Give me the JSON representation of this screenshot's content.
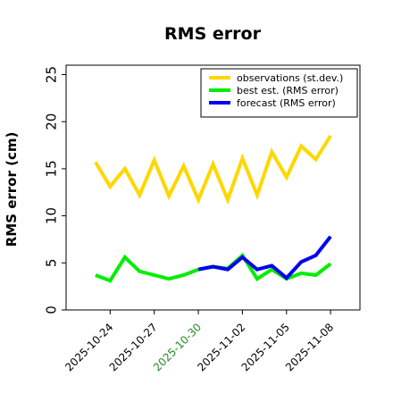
{
  "chart_data": {
    "type": "line",
    "title": "RMS error",
    "ylabel": "RMS error (cm)",
    "xlabel": "",
    "ylim": [
      0,
      26
    ],
    "xlim": [
      "2025-10-21",
      "2025-11-10"
    ],
    "yticks": [
      0,
      5,
      10,
      15,
      20,
      25
    ],
    "xticks": [
      {
        "label": "2025-10-24",
        "date": "2025-10-24",
        "color": "#000000"
      },
      {
        "label": "2025-10-27",
        "date": "2025-10-27",
        "color": "#000000"
      },
      {
        "label": "2025-10-30",
        "date": "2025-10-30",
        "color": "#228B22"
      },
      {
        "label": "2025-11-02",
        "date": "2025-11-02",
        "color": "#000000"
      },
      {
        "label": "2025-11-05",
        "date": "2025-11-05",
        "color": "#000000"
      },
      {
        "label": "2025-11-08",
        "date": "2025-11-08",
        "color": "#000000"
      }
    ],
    "grid": false,
    "legend_position": "top-right",
    "series": [
      {
        "name": "observations (st.dev.)",
        "color": "#FFD700",
        "x": [
          "2025-10-23",
          "2025-10-24",
          "2025-10-25",
          "2025-10-26",
          "2025-10-27",
          "2025-10-28",
          "2025-10-29",
          "2025-10-30",
          "2025-10-31",
          "2025-11-01",
          "2025-11-02",
          "2025-11-03",
          "2025-11-04",
          "2025-11-05",
          "2025-11-06",
          "2025-11-07",
          "2025-11-08"
        ],
        "y": [
          15.7,
          13.1,
          15.0,
          12.2,
          15.9,
          12.1,
          15.3,
          11.7,
          15.5,
          11.7,
          16.1,
          12.2,
          16.8,
          14.1,
          17.4,
          16.0,
          18.5
        ]
      },
      {
        "name": "best est. (RMS error)",
        "color": "#00EE00",
        "x": [
          "2025-10-23",
          "2025-10-24",
          "2025-10-25",
          "2025-10-26",
          "2025-10-27",
          "2025-10-28",
          "2025-10-29",
          "2025-10-30",
          "2025-10-31",
          "2025-11-01",
          "2025-11-02",
          "2025-11-03",
          "2025-11-04",
          "2025-11-05",
          "2025-11-06",
          "2025-11-07",
          "2025-11-08"
        ],
        "y": [
          3.7,
          3.1,
          5.6,
          4.1,
          3.7,
          3.3,
          3.7,
          4.3,
          4.6,
          4.4,
          5.8,
          3.3,
          4.3,
          3.3,
          3.9,
          3.7,
          4.9
        ]
      },
      {
        "name": "forecast (RMS error)",
        "color": "#0000EE",
        "x": [
          "2025-10-30",
          "2025-10-31",
          "2025-11-01",
          "2025-11-02",
          "2025-11-03",
          "2025-11-04",
          "2025-11-05",
          "2025-11-06",
          "2025-11-07",
          "2025-11-08"
        ],
        "y": [
          4.3,
          4.6,
          4.3,
          5.6,
          4.3,
          4.7,
          3.4,
          5.1,
          5.8,
          7.8
        ]
      }
    ]
  }
}
